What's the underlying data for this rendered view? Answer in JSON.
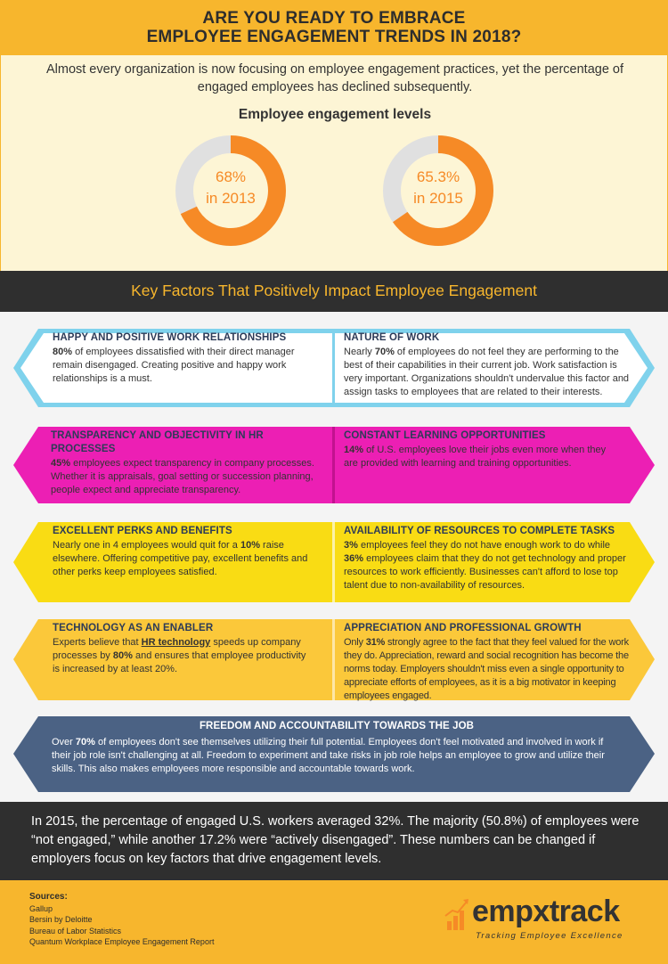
{
  "header": {
    "title_line1": "ARE YOU READY TO EMBRACE",
    "title_line2": "EMPLOYEE ENGAGEMENT TRENDS IN 2018?"
  },
  "intro": {
    "lead": "Almost every organization is now focusing on employee engagement practices, yet the percentage of engaged employees has declined subsequently.",
    "subtitle": "Employee engagement levels",
    "donuts": [
      {
        "value": 68,
        "pct_label": "68%",
        "year_label": "in 2013"
      },
      {
        "value": 65.3,
        "pct_label": "65.3%",
        "year_label": "in 2015"
      }
    ],
    "colors": {
      "fill": "#f68a26",
      "track": "#e0e0e0"
    }
  },
  "band": {
    "title": "Key Factors That Positively Impact Employee Engagement"
  },
  "factors": {
    "row1": {
      "left_head": "HAPPY AND POSITIVE WORK RELATIONSHIPS",
      "left_bold": "80%",
      "left_text": " of employees dissatisfied with their direct manager remain disengaged. Creating positive and happy work relationships is a must.",
      "right_head": "NATURE OF WORK",
      "right_pre": "Nearly ",
      "right_bold": "70%",
      "right_text": " of employees do not feel they are performing to the best of their capabilities in their current job. Work satisfaction is very important. Organizations shouldn't undervalue this factor and assign tasks to employees that are related to their interests.",
      "color": "#7fd2ec"
    },
    "row2": {
      "left_head": "TRANSPARENCY AND OBJECTIVITY IN HR PROCESSES",
      "left_bold": "45%",
      "left_text": " employees expect transparency in company processes. Whether it is appraisals, goal setting or succession planning, people expect and appreciate transparency.",
      "right_head": "CONSTANT LEARNING OPPORTUNITIES",
      "right_bold": "14%",
      "right_text": " of U.S. employees love their jobs even more when they are provided with learning and training opportunities.",
      "color": "#ec1fb4"
    },
    "row3": {
      "left_head": "EXCELLENT PERKS AND  BENEFITS",
      "left_pre": "Nearly one in 4 employees would quit for a ",
      "left_bold": "10%",
      "left_text": " raise elsewhere. Offering competitive pay, excellent benefits and other perks keep employees satisfied.",
      "right_head": "AVAILABILITY OF RESOURCES TO COMPLETE TASKS",
      "right_bold": "3%",
      "right_mid": " employees feel they do not have enough work to do while ",
      "right_bold2": "36%",
      "right_text": " employees claim that they do not get technology and proper resources to work efficiently. Businesses can't afford to lose top talent due to non-availability of resources.",
      "color": "#f9dc14"
    },
    "row4": {
      "left_head": "TECHNOLOGY  AS AN ENABLER",
      "left_pre": "Experts believe that ",
      "left_link": "HR technology",
      "left_mid": " speeds up company processes by ",
      "left_bold": "80%",
      "left_text": " and ensures that employee productivity is increased by at least 20%.",
      "right_head": "APPRECIATION AND PROFESSIONAL GROWTH",
      "right_pre": "Only ",
      "right_bold": "31%",
      "right_text": " strongly agree to the fact that they feel valued for the work they do. Appreciation, reward and social recognition has become the norms today. Employers shouldn't miss even a single opportunity to appreciate efforts of employees, as it is a big motivator in keeping employees engaged.",
      "color": "#fbc83a"
    },
    "row5": {
      "head": "FREEDOM AND ACCOUNTABILITY TOWARDS THE JOB",
      "pre": "Over ",
      "bold": "70%",
      "text": " of employees don't see themselves utilizing their full potential. Employees don't feel motivated and involved in work if their job role isn't challenging at all. Freedom to experiment and take risks in job role helps an employee to grow and utilize their skills. This also makes employees more responsible and accountable towards work.",
      "color": "#4b6284"
    }
  },
  "summary": {
    "text": "In 2015, the percentage of engaged U.S. workers averaged 32%. The majority (50.8%) of employees were “not engaged,” while another 17.2% were “actively disengaged”. These numbers can be changed if employers focus on key factors that drive engagement levels."
  },
  "footer": {
    "sources_title": "Sources:",
    "sources": [
      "Gallup",
      "Bersin by Deloitte",
      "Bureau of Labor Statistics",
      "Quantum Workplace Employee Engagement Report"
    ],
    "logo_word_a": "empx",
    "logo_word_b": "track",
    "logo_tagline": "Tracking Employee Excellence"
  }
}
